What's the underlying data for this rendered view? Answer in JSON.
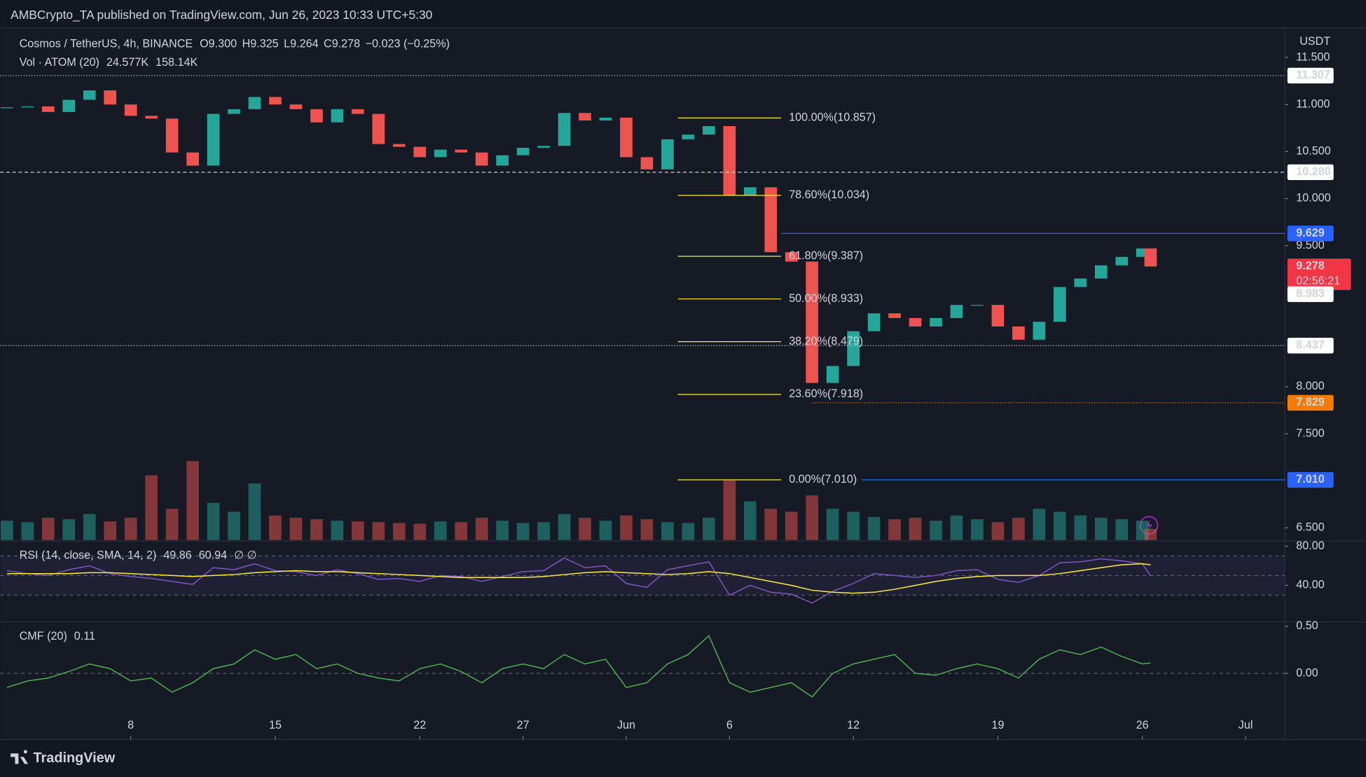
{
  "header": {
    "text": "AMBCrypto_TA published on TradingView.com, Jun 26, 2023 10:33 UTC+5:30"
  },
  "footer": {
    "brand": "TradingView"
  },
  "chart_data": [
    {
      "type": "candlestick",
      "title": "Cosmos / TetherUS, 4h, BINANCE",
      "ohlc": [
        {
          "key": "O",
          "value": "9.300"
        },
        {
          "key": "H",
          "value": "9.325"
        },
        {
          "key": "L",
          "value": "9.264"
        },
        {
          "key": "C",
          "value": "9.278"
        }
      ],
      "change": "−0.023 (−0.25%)",
      "y_unit": "USDT",
      "volume_legend": {
        "title": "Vol · ATOM (20)",
        "values": [
          {
            "text": "24.577K",
            "color": "#ef5350"
          },
          {
            "text": "158.14K",
            "color": "#2962ff"
          }
        ]
      },
      "x": [
        1,
        2,
        3,
        4,
        5,
        6,
        7,
        8,
        9,
        10,
        11,
        12,
        13,
        14,
        15,
        16,
        17,
        18,
        19,
        20,
        21,
        22,
        23,
        24,
        25,
        26,
        27,
        28,
        29,
        30,
        31,
        32,
        33,
        34,
        35,
        36,
        37,
        38,
        39,
        40,
        41,
        42,
        43,
        44,
        45,
        46,
        47,
        48,
        49,
        50,
        51,
        52,
        53,
        54,
        55,
        56,
        56.4
      ],
      "xlim": [
        0.675,
        62.9
      ],
      "xticks": [
        {
          "value": 7,
          "label": "8"
        },
        {
          "value": 14,
          "label": "15"
        },
        {
          "value": 21,
          "label": "22"
        },
        {
          "value": 26,
          "label": "27"
        },
        {
          "value": 31,
          "label": "Jun"
        },
        {
          "value": 36,
          "label": "6"
        },
        {
          "value": 42,
          "label": "12"
        },
        {
          "value": 49,
          "label": "19"
        },
        {
          "value": 56,
          "label": "26"
        },
        {
          "value": 61,
          "label": "Jul"
        }
      ],
      "ylim": [
        6.37,
        11.833
      ],
      "yticks": [
        {
          "value": 11.5,
          "label": "11.500"
        },
        {
          "value": 11,
          "label": "11.000"
        },
        {
          "value": 10.5,
          "label": "10.500"
        },
        {
          "value": 10,
          "label": "10.000"
        },
        {
          "value": 9.5,
          "label": "9.500"
        },
        {
          "value": 8,
          "label": "8.000"
        },
        {
          "value": 7.5,
          "label": "7.500"
        },
        {
          "value": 6.5,
          "label": "6.500"
        }
      ],
      "y2lim": [
        0,
        6900
      ],
      "series": [
        {
          "up_color": "#26a69a",
          "down_color": "#ef5350",
          "values": [
            10.97,
            10.98,
            10.92,
            11.05,
            11.15,
            11.0,
            10.88,
            10.85,
            10.49,
            10.35,
            10.9,
            10.95,
            11.08,
            11.0,
            10.95,
            10.81,
            10.95,
            10.9,
            10.58,
            10.55,
            10.44,
            10.52,
            10.49,
            10.35,
            10.46,
            10.54,
            10.56,
            10.91,
            10.83,
            10.86,
            10.44,
            10.31,
            10.63,
            10.68,
            10.77,
            10.03,
            10.12,
            9.43,
            9.33,
            8.04,
            8.22,
            8.59,
            8.78,
            8.73,
            8.64,
            8.73,
            8.87,
            8.87,
            8.64,
            8.5,
            8.69,
            9.06,
            9.15,
            9.29,
            9.38,
            9.47,
            9.278
          ]
        },
        {
          "axis": "y2",
          "up_color": "#26a69a",
          "down_color": "#ef5350",
          "values": [
            260,
            240,
            300,
            280,
            350,
            250,
            300,
            870,
            420,
            1060,
            500,
            380,
            760,
            330,
            300,
            280,
            260,
            250,
            240,
            230,
            220,
            250,
            240,
            300,
            260,
            230,
            240,
            350,
            300,
            260,
            330,
            280,
            240,
            230,
            300,
            800,
            520,
            420,
            380,
            600,
            420,
            380,
            310,
            280,
            300,
            260,
            330,
            280,
            240,
            300,
            420,
            380,
            330,
            300,
            280,
            260,
            150
          ]
        }
      ],
      "fib": {
        "x": [
          33.5,
          38.5
        ],
        "color": "#ffeb3b",
        "levels": [
          {
            "value": 10.857,
            "label": "100.00%(10.857)"
          },
          {
            "value": 10.034,
            "label": "78.60%(10.034)"
          },
          {
            "value": 9.387,
            "label": "61.80%(9.387)"
          },
          {
            "value": 8.933,
            "label": "50.00%(8.933)"
          },
          {
            "value": 8.479,
            "label": "38.20%(8.479)"
          },
          {
            "value": 7.918,
            "label": "23.60%(7.918)"
          },
          {
            "value": 7.01,
            "label": "0.00%(7.010)"
          }
        ]
      },
      "price_lines": [
        {
          "value": 11.307,
          "label": "11.307",
          "color": "#ffffff",
          "text_color": "#131722",
          "style": "dotted",
          "from": 0.675
        },
        {
          "value": 10.28,
          "label": "10.280",
          "color": "#ffffff",
          "text_color": "#131722",
          "style": "dashed",
          "from": 0.675
        },
        {
          "value": 9.629,
          "label": "9.629",
          "color": "#2962ff",
          "text_color": "#ffffff",
          "style": "solid",
          "from": 38.5
        },
        {
          "value": 9.278,
          "label": "9.278",
          "color": "#f23645",
          "text_color": "#ffffff",
          "style": "none",
          "from": 56.4,
          "countdown": "02:56:21"
        },
        {
          "value": 8.983,
          "label": "8.983",
          "color": "#ffffff",
          "text_color": "#131722",
          "style": "none",
          "from": 56.4
        },
        {
          "value": 8.437,
          "label": "8.437",
          "color": "#ffffff",
          "text_color": "#131722",
          "style": "dotted",
          "from": 0.675
        },
        {
          "value": 7.829,
          "label": "7.829",
          "color": "#f57c00",
          "text_color": "#131722",
          "style": "dotted",
          "from": 40
        },
        {
          "value": 7.01,
          "label": "7.010",
          "color": "#2962ff",
          "text_color": "#ffffff",
          "style": "solid",
          "from": 42.4
        }
      ]
    },
    {
      "type": "line",
      "title": "RSI (14, close, SMA, 14, 2)",
      "legend_values": [
        {
          "text": "49.86",
          "color": "#b39ddb"
        },
        {
          "text": "60.94",
          "color": "#ffeb3b"
        },
        {
          "text": "∅ ∅",
          "color": "#9598a1"
        }
      ],
      "x": [
        1,
        2,
        3,
        4,
        5,
        6,
        7,
        8,
        9,
        10,
        11,
        12,
        13,
        14,
        15,
        16,
        17,
        18,
        19,
        20,
        21,
        22,
        23,
        24,
        25,
        26,
        27,
        28,
        29,
        30,
        31,
        32,
        33,
        34,
        35,
        36,
        37,
        38,
        39,
        40,
        41,
        42,
        43,
        44,
        45,
        46,
        47,
        48,
        49,
        50,
        51,
        52,
        53,
        54,
        55,
        56,
        56.4
      ],
      "ylim": [
        3.56,
        84.44
      ],
      "yticks": [
        {
          "value": 80,
          "label": "80.00"
        },
        {
          "value": 40,
          "label": "40.00"
        }
      ],
      "bands": [
        70,
        50,
        30
      ],
      "series": [
        {
          "color": "#7e57c2",
          "values": [
            55,
            52,
            50,
            56,
            60,
            52,
            49,
            47,
            44,
            41,
            58,
            56,
            62,
            55,
            54,
            50,
            56,
            52,
            46,
            47,
            44,
            50,
            49,
            44,
            49,
            54,
            55,
            68,
            58,
            60,
            42,
            38,
            56,
            60,
            64,
            30,
            40,
            33,
            31,
            22,
            34,
            42,
            52,
            50,
            48,
            50,
            55,
            56,
            46,
            43,
            50,
            63,
            64,
            67,
            65,
            62,
            49.86
          ]
        },
        {
          "color": "#ffeb3b",
          "values": [
            52,
            52,
            52,
            52,
            53,
            53,
            52,
            51,
            50,
            49,
            50,
            51,
            53,
            54,
            55,
            54,
            54,
            53,
            52,
            51,
            50,
            49,
            48,
            48,
            48,
            48,
            49,
            51,
            53,
            54,
            53,
            52,
            51,
            52,
            54,
            52,
            48,
            44,
            40,
            35,
            33,
            32,
            33,
            36,
            40,
            44,
            47,
            49,
            50,
            50,
            50,
            52,
            55,
            58,
            61,
            62,
            60.94
          ]
        }
      ]
    },
    {
      "type": "line",
      "title": "CMF (20)",
      "legend_values": [
        {
          "text": "0.11",
          "color": "#4caf50"
        }
      ],
      "x": [
        1,
        2,
        3,
        4,
        5,
        6,
        7,
        8,
        9,
        10,
        11,
        12,
        13,
        14,
        15,
        16,
        17,
        18,
        19,
        20,
        21,
        22,
        23,
        24,
        25,
        26,
        27,
        28,
        29,
        30,
        31,
        32,
        33,
        34,
        35,
        36,
        37,
        38,
        39,
        40,
        41,
        42,
        43,
        44,
        45,
        46,
        47,
        48,
        49,
        50,
        51,
        52,
        53,
        54,
        55,
        56,
        56.4
      ],
      "ylim": [
        -0.694,
        0.537
      ],
      "yticks": [
        {
          "value": 0.5,
          "label": "0.50"
        },
        {
          "value": 0,
          "label": "0.00"
        }
      ],
      "bands": [
        0
      ],
      "series": [
        {
          "color": "#4caf50",
          "values": [
            -0.15,
            -0.08,
            -0.05,
            0.02,
            0.1,
            0.05,
            -0.08,
            -0.05,
            -0.2,
            -0.1,
            0.05,
            0.1,
            0.25,
            0.15,
            0.2,
            0.05,
            0.1,
            0.0,
            -0.05,
            -0.08,
            0.05,
            0.1,
            0.02,
            -0.1,
            0.05,
            0.1,
            0.05,
            0.2,
            0.1,
            0.15,
            -0.15,
            -0.1,
            0.1,
            0.2,
            0.4,
            -0.1,
            -0.2,
            -0.15,
            -0.1,
            -0.25,
            0.0,
            0.1,
            0.15,
            0.2,
            0.0,
            -0.02,
            0.05,
            0.1,
            0.05,
            -0.05,
            0.15,
            0.25,
            0.2,
            0.28,
            0.18,
            0.1,
            0.11
          ]
        }
      ]
    }
  ]
}
